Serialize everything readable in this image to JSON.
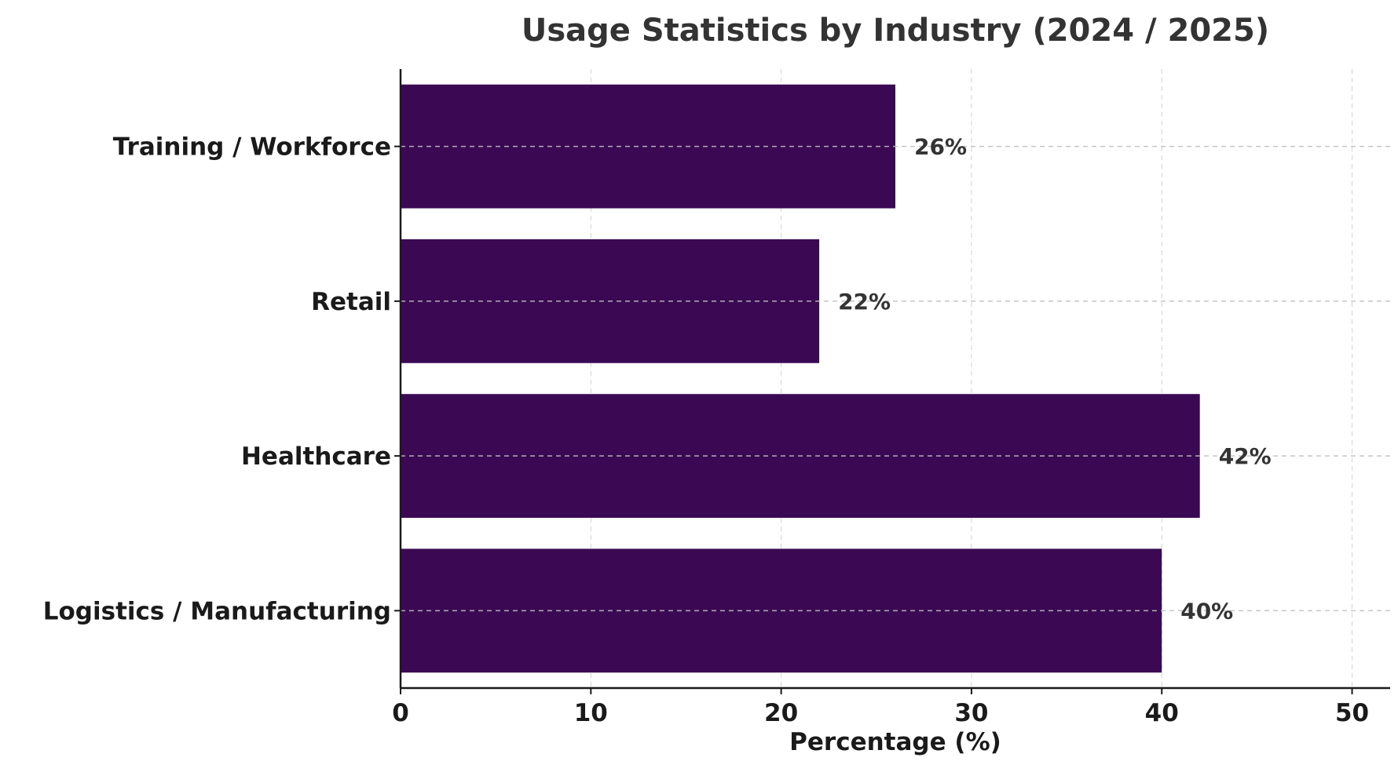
{
  "chart_data": {
    "type": "bar",
    "orientation": "horizontal",
    "title": "Usage Statistics by Industry (2024 / 2025)",
    "xlabel": "Percentage (%)",
    "ylabel": "",
    "categories": [
      "Logistics / Manufacturing",
      "Healthcare",
      "Retail",
      "Training / Workforce"
    ],
    "values": [
      40,
      42,
      22,
      26
    ],
    "data_labels": [
      "40%",
      "42%",
      "22%",
      "26%"
    ],
    "xlim": [
      0,
      52
    ],
    "xticks": [
      0,
      10,
      20,
      30,
      40,
      50
    ],
    "xtick_labels": [
      "0",
      "10",
      "20",
      "30",
      "40",
      "50"
    ],
    "grid": true,
    "bar_color": "#3b0954",
    "grid_color": "#bfbfbf"
  }
}
